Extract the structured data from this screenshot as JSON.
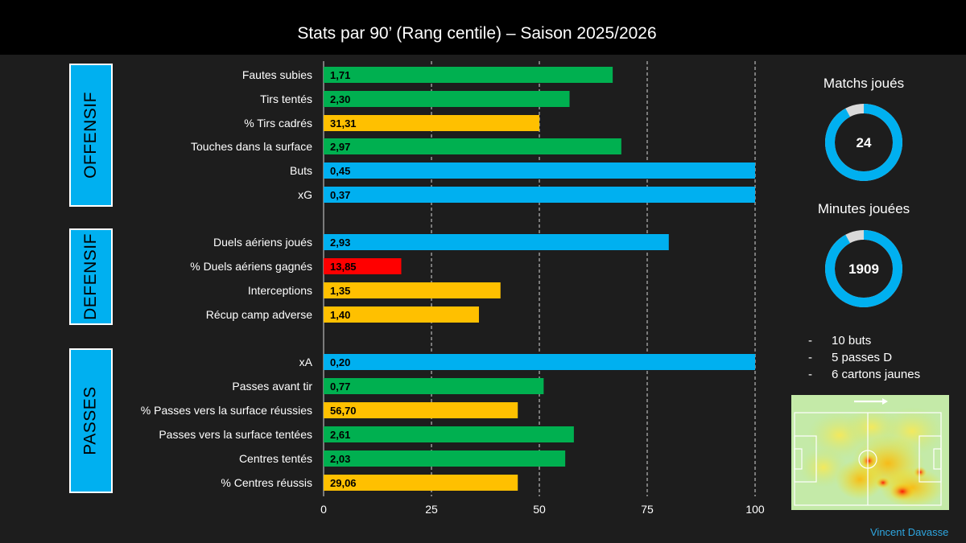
{
  "title": "Stats par 90’ (Rang centile) – Saison 2025/2026",
  "sections": [
    {
      "label": "OFFENSIF"
    },
    {
      "label": "DEFENSIF"
    },
    {
      "label": "PASSES"
    }
  ],
  "colors": {
    "green": "#00b050",
    "yellow": "#ffc000",
    "blue": "#00b0f0",
    "red": "#ff0000",
    "background": "#1d1d1d",
    "title_bar": "#000000"
  },
  "chart_data": {
    "type": "bar",
    "orientation": "horizontal",
    "title": "Stats par 90’ (Rang centile) – Saison 2025/2026",
    "xlim": [
      0,
      100
    ],
    "xticks": [
      0,
      25,
      50,
      75,
      100
    ],
    "grid": "vertical dashed at ticks",
    "bars": [
      {
        "category": "Fautes subies",
        "percentile": 67,
        "label": "1,71",
        "color": "green"
      },
      {
        "category": "Tirs tentés",
        "percentile": 57,
        "label": "2,30",
        "color": "green"
      },
      {
        "category": "% Tirs cadrés",
        "percentile": 50,
        "label": "31,31",
        "color": "yellow"
      },
      {
        "category": "Touches dans la surface",
        "percentile": 69,
        "label": "2,97",
        "color": "green"
      },
      {
        "category": "Buts",
        "percentile": 100,
        "label": "0,45",
        "color": "blue"
      },
      {
        "category": "xG",
        "percentile": 100,
        "label": "0,37",
        "color": "blue"
      },
      {
        "category": "Duels aériens joués",
        "percentile": 80,
        "label": "2,93",
        "color": "blue"
      },
      {
        "category": "% Duels aériens gagnés",
        "percentile": 18,
        "label": "13,85",
        "color": "red"
      },
      {
        "category": "Interceptions",
        "percentile": 41,
        "label": "1,35",
        "color": "yellow"
      },
      {
        "category": "Récup camp adverse",
        "percentile": 36,
        "label": "1,40",
        "color": "yellow"
      },
      {
        "category": "xA",
        "percentile": 100,
        "label": "0,20",
        "color": "blue"
      },
      {
        "category": "Passes avant tir",
        "percentile": 51,
        "label": "0,77",
        "color": "green"
      },
      {
        "category": "% Passes vers la surface réussies",
        "percentile": 45,
        "label": "56,70",
        "color": "yellow"
      },
      {
        "category": "Passes vers la surface tentées",
        "percentile": 58,
        "label": "2,61",
        "color": "green"
      },
      {
        "category": "Centres tentés",
        "percentile": 56,
        "label": "2,03",
        "color": "green"
      },
      {
        "category": "% Centres réussis",
        "percentile": 45,
        "label": "29,06",
        "color": "yellow"
      }
    ]
  },
  "sidebar": {
    "matches": {
      "title": "Matchs joués",
      "value": "24",
      "fraction": 0.92
    },
    "minutes": {
      "title": "Minutes jouées",
      "value": "1909",
      "fraction": 0.92
    },
    "notes": [
      "10 buts",
      "5 passes D",
      "6 cartons jaunes"
    ],
    "note_bullet": "-"
  },
  "credit": "Vincent Davasse"
}
